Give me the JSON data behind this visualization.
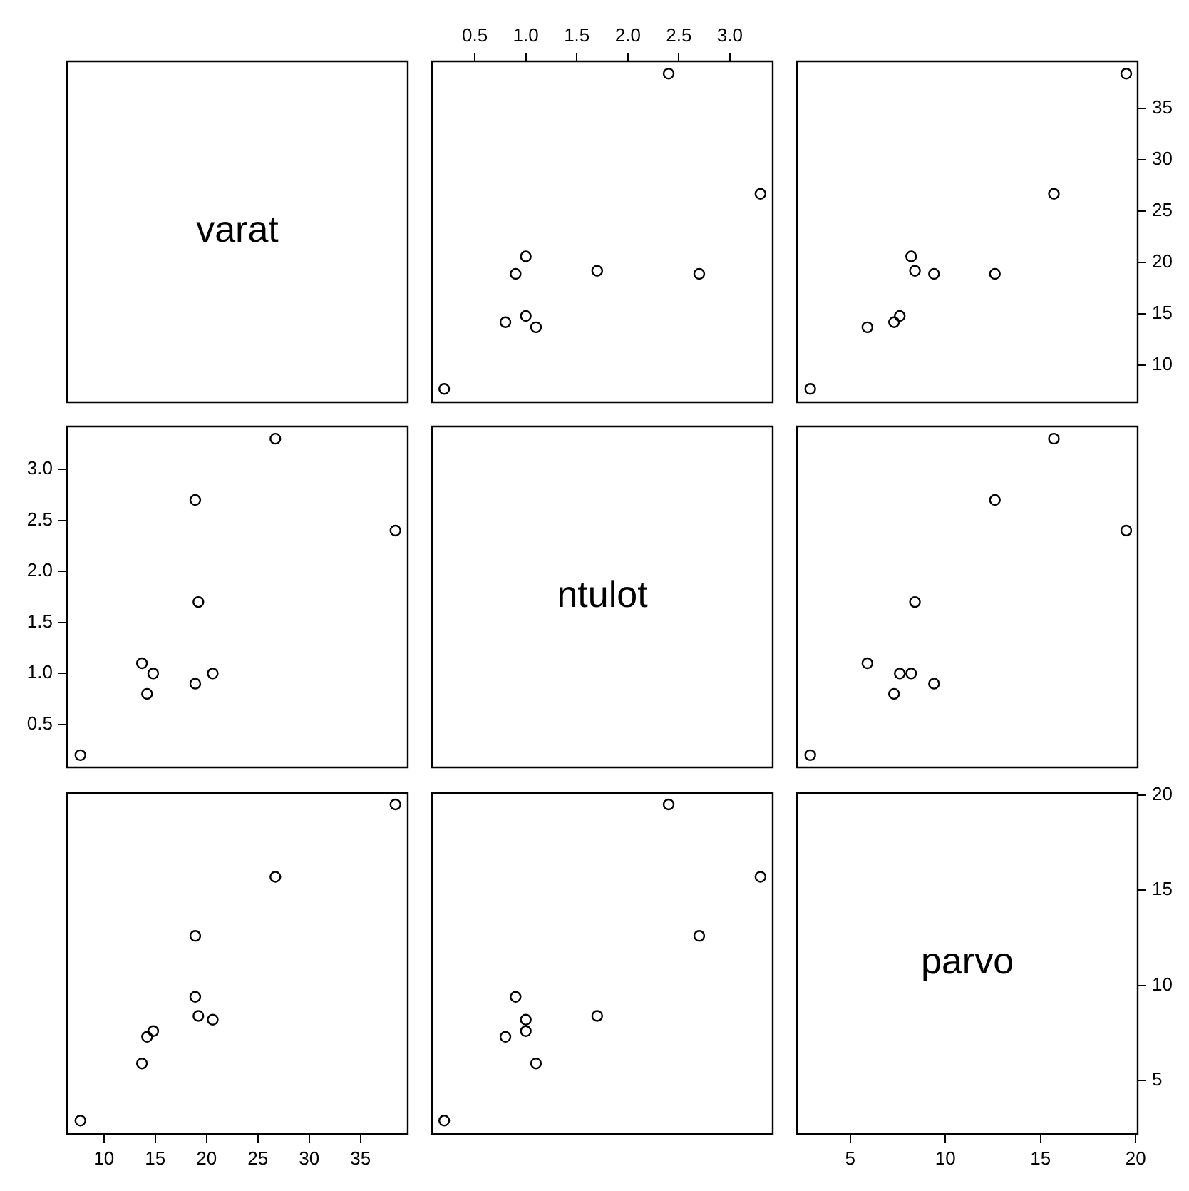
{
  "chart_data": [
    {
      "type": "other",
      "title": "varat"
    },
    {
      "type": "scatter",
      "x": [
        0.2,
        1.1,
        0.8,
        1.0,
        1.0,
        1.7,
        0.9,
        2.7,
        3.3,
        2.4
      ],
      "series": [
        {
          "color": "#000000",
          "values": [
            7.7,
            13.7,
            14.2,
            14.8,
            20.6,
            19.2,
            18.9,
            18.9,
            26.7,
            38.4
          ]
        }
      ],
      "marker": "circle",
      "xlim": [
        0.08,
        3.42
      ],
      "xticks": [
        0.5,
        {
          "value": 1,
          "label": "1.0"
        },
        1.5,
        {
          "value": 2,
          "label": "2.0"
        },
        2.5,
        {
          "value": 3,
          "label": "3.0"
        }
      ],
      "ylim": [
        6.4,
        39.6
      ],
      "tick_labels": "x"
    },
    {
      "type": "scatter",
      "x": [
        2.9,
        5.9,
        7.3,
        7.6,
        8.2,
        8.4,
        9.4,
        12.6,
        15.7,
        19.5
      ],
      "series": [
        {
          "color": "#000000",
          "values": [
            7.7,
            13.7,
            14.2,
            14.8,
            20.6,
            19.2,
            18.9,
            18.9,
            26.7,
            38.4
          ]
        }
      ],
      "marker": "circle",
      "xlim": [
        2.2,
        20.1
      ],
      "ylim": [
        6.4,
        39.6
      ],
      "yticks": [
        10,
        15,
        20,
        25,
        30,
        35
      ],
      "tick_labels": "y"
    },
    {
      "type": "scatter",
      "x": [
        7.7,
        13.7,
        14.2,
        14.8,
        20.6,
        19.2,
        18.9,
        18.9,
        26.7,
        38.4
      ],
      "series": [
        {
          "color": "#000000",
          "values": [
            0.2,
            1.1,
            0.8,
            1.0,
            1.0,
            1.7,
            0.9,
            2.7,
            3.3,
            2.4
          ]
        }
      ],
      "marker": "circle",
      "xlim": [
        6.4,
        39.6
      ],
      "ylim": [
        0.08,
        3.42
      ],
      "yticks": [
        0.5,
        {
          "value": 1,
          "label": "1.0"
        },
        1.5,
        {
          "value": 2,
          "label": "2.0"
        },
        2.5,
        {
          "value": 3,
          "label": "3.0"
        }
      ],
      "tick_labels": "y"
    },
    {
      "type": "other",
      "title": "ntulot"
    },
    {
      "type": "scatter",
      "x": [
        2.9,
        5.9,
        7.3,
        7.6,
        8.2,
        8.4,
        9.4,
        12.6,
        15.7,
        19.5
      ],
      "series": [
        {
          "color": "#000000",
          "values": [
            0.2,
            1.1,
            0.8,
            1.0,
            1.0,
            1.7,
            0.9,
            2.7,
            3.3,
            2.4
          ]
        }
      ],
      "marker": "circle",
      "xlim": [
        2.2,
        20.1
      ],
      "ylim": [
        0.08,
        3.42
      ],
      "tick_labels": false
    },
    {
      "type": "scatter",
      "x": [
        7.7,
        13.7,
        14.2,
        14.8,
        20.6,
        19.2,
        18.9,
        18.9,
        26.7,
        38.4
      ],
      "series": [
        {
          "color": "#000000",
          "values": [
            2.9,
            5.9,
            7.3,
            7.6,
            8.2,
            8.4,
            9.4,
            12.6,
            15.7,
            19.5
          ]
        }
      ],
      "marker": "circle",
      "xlim": [
        6.4,
        39.6
      ],
      "xticks": [
        10,
        15,
        20,
        25,
        30,
        35
      ],
      "ylim": [
        2.2,
        20.1
      ],
      "tick_labels": "x"
    },
    {
      "type": "scatter",
      "x": [
        0.2,
        1.1,
        0.8,
        1.0,
        1.0,
        1.7,
        0.9,
        2.7,
        3.3,
        2.4
      ],
      "series": [
        {
          "color": "#000000",
          "values": [
            2.9,
            5.9,
            7.3,
            7.6,
            8.2,
            8.4,
            9.4,
            12.6,
            15.7,
            19.5
          ]
        }
      ],
      "marker": "circle",
      "xlim": [
        0.08,
        3.42
      ],
      "ylim": [
        2.2,
        20.1
      ],
      "tick_labels": false
    },
    {
      "type": "scatter",
      "title": "parvo",
      "xlim": [
        2.2,
        20.1
      ],
      "xticks": [
        5,
        10,
        15,
        20
      ],
      "ylim": [
        2.2,
        20.1
      ],
      "yticks": [
        5,
        10,
        15,
        20
      ]
    }
  ]
}
